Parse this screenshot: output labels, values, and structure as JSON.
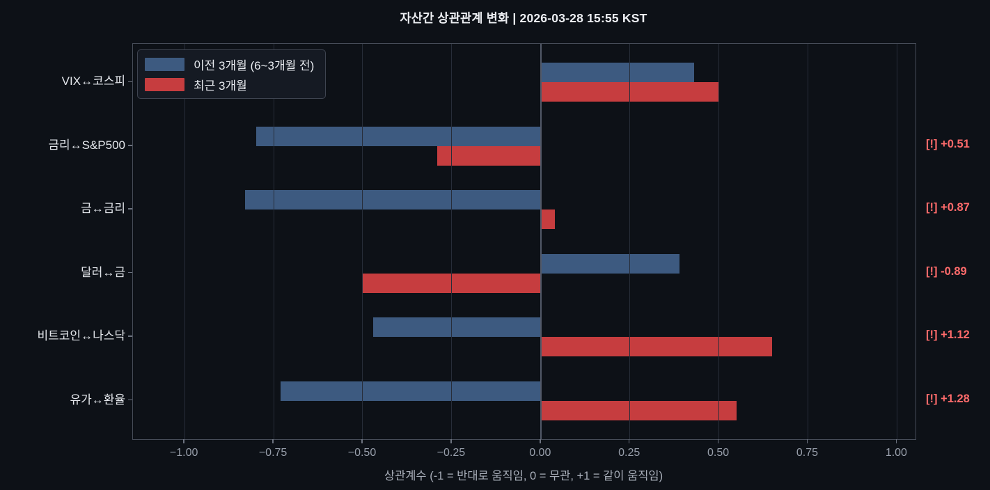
{
  "title": "자산간 상관관계 변화 | 2026-03-28 15:55 KST",
  "chart_data": {
    "type": "bar",
    "orientation": "horizontal",
    "title": "자산간 상관관계 변화 | 2026-03-28 15:55 KST",
    "categories": [
      "VIX↔코스피",
      "금리↔S&P500",
      "금↔금리",
      "달러↔금",
      "비트코인↔나스닥",
      "유가↔환율"
    ],
    "series": [
      {
        "name": "이전 3개월 (6~3개월 전)",
        "color": "#3d5a80",
        "values": [
          0.43,
          -0.8,
          -0.83,
          0.39,
          -0.47,
          -0.73
        ]
      },
      {
        "name": "최근 3개월",
        "color": "#c63d3f",
        "values": [
          0.5,
          -0.29,
          0.04,
          -0.5,
          0.65,
          0.55
        ]
      }
    ],
    "annotations": [
      null,
      "[!] +0.51",
      "[!] +0.87",
      "[!] -0.89",
      "[!] +1.12",
      "[!] +1.28"
    ],
    "xlabel": "상관계수 (-1 = 반대로 움직임, 0 = 무관, +1 = 같이 움직임)",
    "xticks": [
      -1.0,
      -0.75,
      -0.5,
      -0.25,
      0.0,
      0.25,
      0.5,
      0.75,
      1.0
    ],
    "xtick_labels": [
      "−1.00",
      "−0.75",
      "−0.50",
      "−0.25",
      "0.00",
      "0.25",
      "0.50",
      "0.75",
      "1.00"
    ],
    "xlim": [
      -1.145,
      1.052
    ],
    "grid": true,
    "legend_position": "upper left"
  },
  "colors": {
    "background": "#0d1117",
    "bar_previous": "#3d5a80",
    "bar_recent": "#c63d3f",
    "annotation": "#ff6b6b",
    "gridline": "#272d39",
    "zero_line": "#525968",
    "spine": "#464c58",
    "title_text": "#eceef2",
    "tick_text": "#989fab",
    "label_text": "#e4e7ec"
  }
}
